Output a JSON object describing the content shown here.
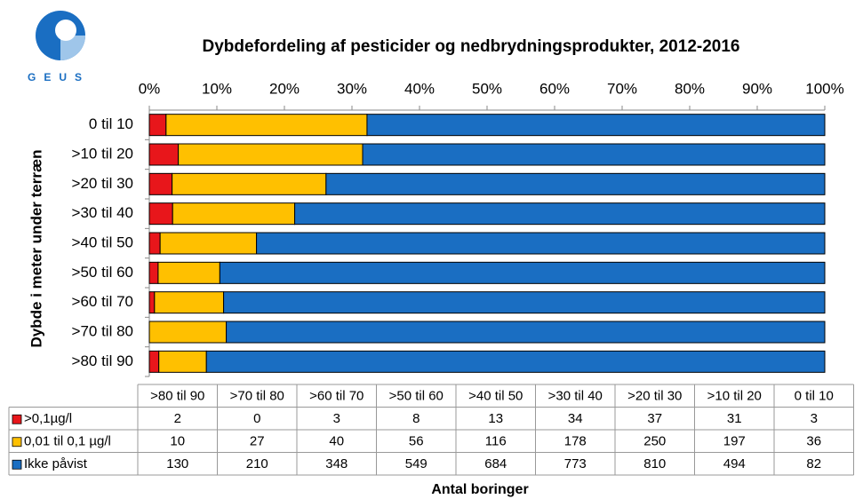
{
  "logo_text": "GEUS",
  "chart_data": {
    "type": "bar",
    "orientation": "horizontal",
    "stacking": "percent",
    "title": "Dybdefordeling af pesticider og nedbrydningsprodukter, 2012-2016",
    "ylabel": "Dybde i meter under terræn",
    "xlabel": "Antal boringer",
    "categories": [
      ">80 til 90",
      ">70 til 80",
      ">60 til 70",
      ">50 til 60",
      ">40 til 50",
      ">30 til 40",
      ">20 til 30",
      ">10 til 20",
      "0 til 10"
    ],
    "series": [
      {
        "name": ">0,1µg/l",
        "color": "#e8161b",
        "values": [
          2,
          0,
          3,
          8,
          13,
          34,
          37,
          31,
          3
        ]
      },
      {
        "name": "0,01 til 0,1 µg/l",
        "color": "#ffc000",
        "values": [
          10,
          27,
          40,
          56,
          116,
          178,
          250,
          197,
          36
        ]
      },
      {
        "name": "Ikke påvist",
        "color": "#1a6ec2",
        "values": [
          130,
          210,
          348,
          549,
          684,
          773,
          810,
          494,
          82
        ]
      }
    ],
    "xlim": [
      0,
      100
    ],
    "xticks": [
      {
        "value": 0,
        "label": "0%"
      },
      {
        "value": 10,
        "label": "10%"
      },
      {
        "value": 20,
        "label": "20%"
      },
      {
        "value": 30,
        "label": "30%"
      },
      {
        "value": 40,
        "label": "40%"
      },
      {
        "value": 50,
        "label": "50%"
      },
      {
        "value": 60,
        "label": "60%"
      },
      {
        "value": 70,
        "label": "70%"
      },
      {
        "value": 80,
        "label": "80%"
      },
      {
        "value": 90,
        "label": "90%"
      },
      {
        "value": 100,
        "label": "100%"
      }
    ],
    "grid": false,
    "data_table": true
  }
}
